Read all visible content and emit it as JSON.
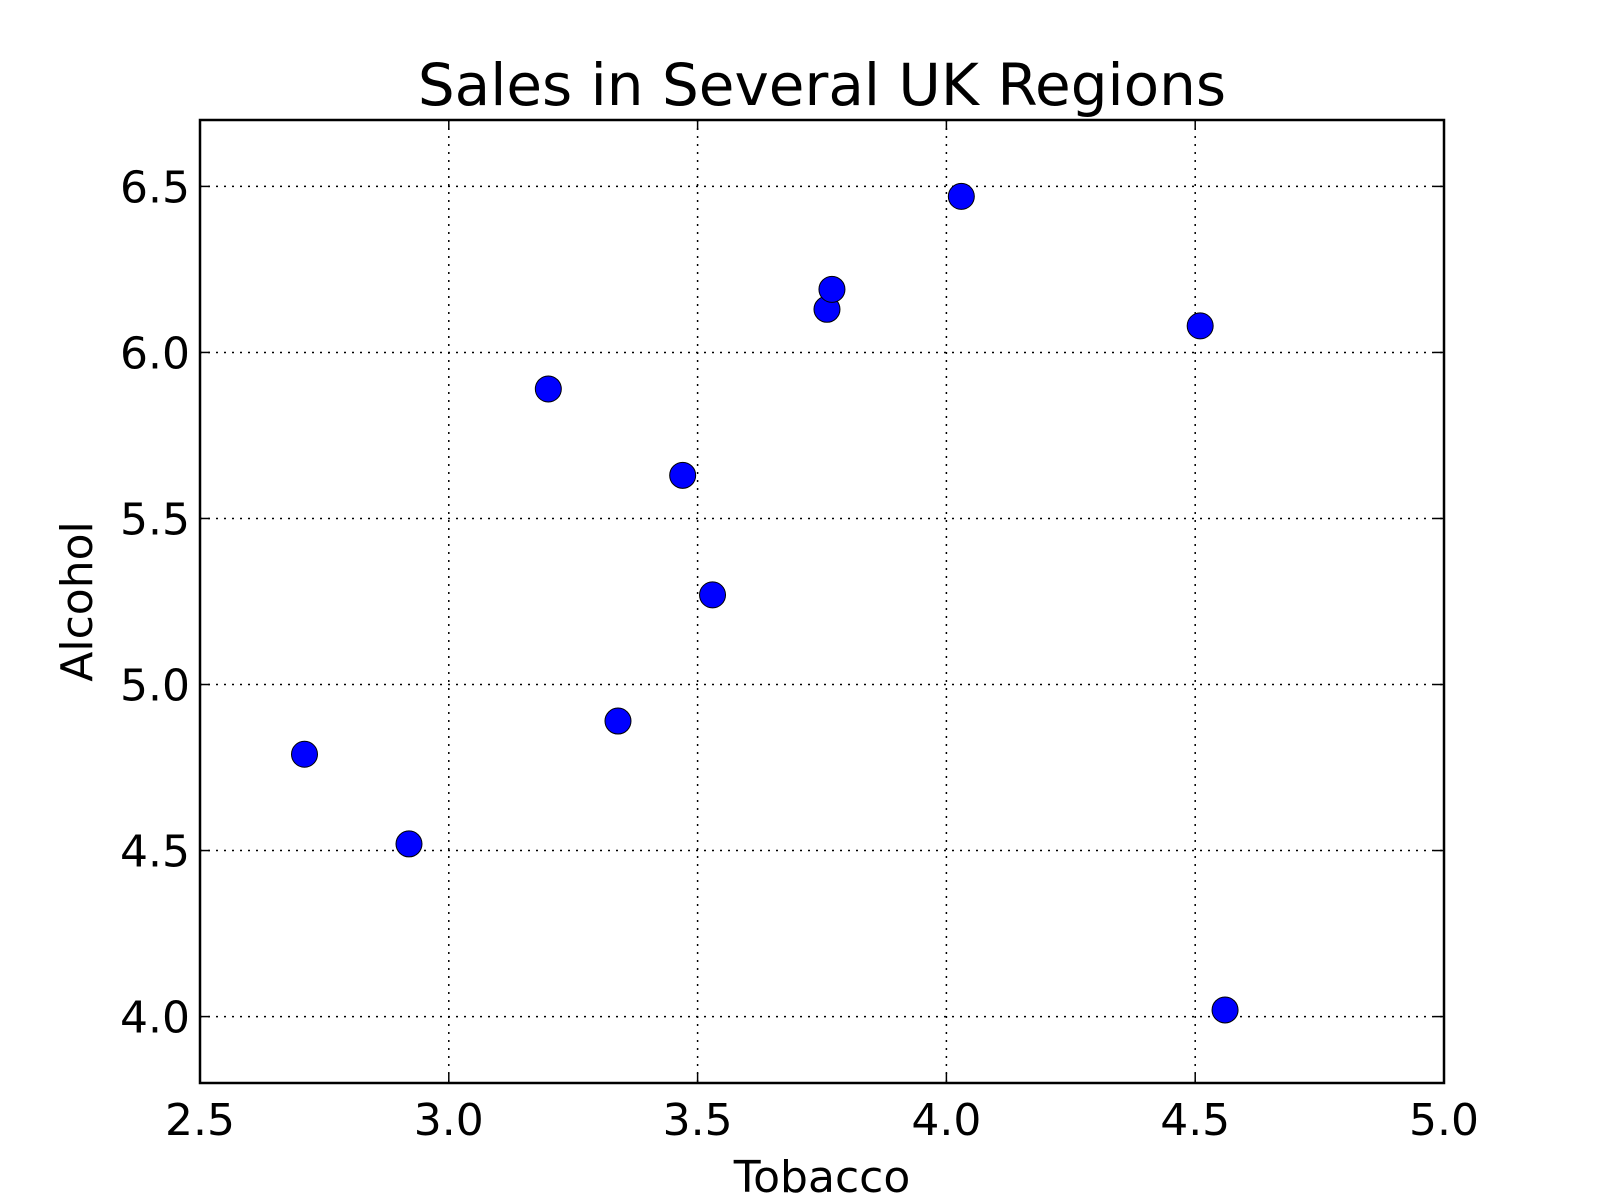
{
  "chart_data": {
    "type": "scatter",
    "title": "Sales in Several UK Regions",
    "xlabel": "Tobacco",
    "ylabel": "Alcohol",
    "xlim": [
      2.5,
      5.0
    ],
    "ylim": [
      3.8,
      6.7
    ],
    "xticks": [
      "2.5",
      "3.0",
      "3.5",
      "4.0",
      "4.5",
      "5.0"
    ],
    "yticks": [
      "4.0",
      "4.5",
      "5.0",
      "5.5",
      "6.0",
      "6.5"
    ],
    "grid": true,
    "marker_color": "#0000ff",
    "points": [
      {
        "x": 2.71,
        "y": 4.79
      },
      {
        "x": 2.92,
        "y": 4.52
      },
      {
        "x": 3.2,
        "y": 5.89
      },
      {
        "x": 3.34,
        "y": 4.89
      },
      {
        "x": 3.47,
        "y": 5.63
      },
      {
        "x": 3.53,
        "y": 5.27
      },
      {
        "x": 3.76,
        "y": 6.13
      },
      {
        "x": 3.77,
        "y": 6.19
      },
      {
        "x": 4.03,
        "y": 6.47
      },
      {
        "x": 4.51,
        "y": 6.08
      },
      {
        "x": 4.56,
        "y": 4.02
      }
    ]
  }
}
